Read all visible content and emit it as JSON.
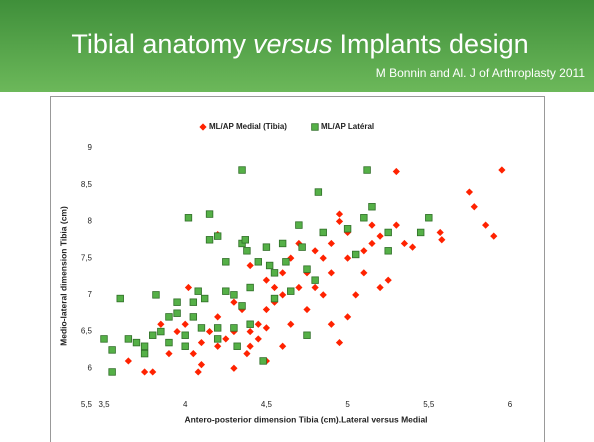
{
  "header": {
    "title": [
      "Tibial anatomy",
      "versus",
      "Implants design"
    ],
    "subtitle": "M Bonnin and Al. J of Arthroplasty 2011"
  },
  "chart_data": {
    "type": "scatter",
    "xlabel": "Antero-posterior dimension Tibia (cm).Lateral versus Medial",
    "ylabel": "Medio-lateral dimension Tibia (cm)",
    "xlim": [
      3.5,
      6
    ],
    "ylim": [
      5.5,
      9
    ],
    "xticks": [
      {
        "value": 3.5,
        "label": "3,5"
      },
      4,
      {
        "value": 4.5,
        "label": "4,5"
      },
      5,
      {
        "value": 5.5,
        "label": "5,5"
      },
      6
    ],
    "yticks": [
      {
        "value": 5.5,
        "label": "5,5"
      },
      6,
      {
        "value": 6.5,
        "label": "6,5"
      },
      7,
      {
        "value": 7.5,
        "label": "7,5"
      },
      8,
      {
        "value": 8.5,
        "label": "8,5"
      },
      9
    ],
    "grid": false,
    "legend": "top",
    "series": [
      {
        "name": "ML/AP Medial (Tibia)",
        "color": "#ff2200",
        "marker": "diamond",
        "x": [
          5.95,
          5.75,
          5.78,
          5.85,
          5.9,
          5.57,
          5.58,
          5.3,
          5.3,
          5.35,
          5.4,
          5.2,
          5.15,
          5.15,
          5.1,
          5.0,
          5.0,
          4.95,
          4.95,
          4.9,
          4.85,
          4.8,
          4.75,
          4.8,
          4.9,
          4.85,
          4.7,
          4.6,
          4.65,
          4.7,
          4.6,
          4.5,
          4.55,
          4.5,
          4.45,
          4.4,
          4.4,
          4.35,
          4.3,
          4.3,
          4.25,
          4.2,
          4.2,
          4.15,
          4.1,
          4.05,
          4.0,
          4.0,
          3.95,
          3.9,
          3.85,
          3.8,
          3.75,
          4.08,
          4.02,
          4.2,
          4.5,
          4.45,
          4.6,
          4.65,
          4.75,
          4.9,
          5.0,
          4.95,
          5.05,
          5.2,
          5.1,
          5.25,
          4.55,
          4.4,
          4.3,
          3.65,
          4.5,
          4.38,
          4.1
        ],
        "values": [
          8.7,
          8.4,
          8.2,
          7.95,
          7.8,
          7.85,
          7.75,
          8.68,
          7.95,
          7.7,
          7.65,
          7.8,
          7.7,
          7.95,
          7.6,
          7.85,
          7.5,
          8.1,
          8.0,
          7.7,
          7.5,
          7.6,
          7.3,
          7.1,
          7.3,
          7.0,
          7.1,
          7.3,
          7.5,
          7.7,
          7.0,
          7.2,
          6.9,
          6.8,
          6.6,
          6.5,
          6.3,
          6.8,
          6.9,
          6.5,
          6.4,
          6.7,
          6.3,
          6.5,
          6.35,
          6.2,
          6.3,
          6.6,
          6.5,
          6.2,
          6.6,
          5.95,
          5.95,
          5.95,
          7.1,
          7.82,
          6.1,
          6.4,
          6.3,
          6.6,
          6.8,
          6.6,
          6.7,
          6.35,
          7.0,
          7.1,
          7.3,
          7.2,
          7.1,
          7.4,
          6.0,
          6.1,
          6.55,
          6.2,
          6.05
        ]
      },
      {
        "name": "ML/AP Latéral",
        "color": "#55b047",
        "marker": "square",
        "x": [
          3.5,
          3.55,
          3.55,
          3.6,
          3.65,
          3.7,
          3.75,
          3.75,
          3.8,
          3.82,
          3.85,
          3.9,
          3.9,
          3.95,
          3.95,
          4.0,
          4.02,
          4.05,
          4.05,
          4.08,
          4.1,
          4.12,
          4.15,
          4.15,
          4.2,
          4.2,
          4.25,
          4.25,
          4.3,
          4.3,
          4.32,
          4.35,
          4.35,
          4.37,
          4.38,
          4.4,
          4.4,
          4.45,
          4.48,
          4.5,
          4.52,
          4.55,
          4.55,
          4.6,
          4.62,
          4.65,
          4.7,
          4.72,
          4.75,
          4.75,
          4.8,
          4.82,
          4.85,
          5.0,
          5.05,
          5.1,
          5.12,
          5.15,
          5.25,
          5.45,
          5.5,
          5.25,
          4.0,
          4.2,
          4.35
        ],
        "values": [
          6.4,
          6.25,
          5.95,
          6.95,
          6.4,
          6.35,
          6.2,
          6.3,
          6.45,
          7.0,
          6.5,
          6.7,
          6.35,
          6.9,
          6.75,
          6.45,
          8.05,
          6.9,
          6.7,
          7.05,
          6.55,
          6.95,
          7.75,
          8.1,
          7.8,
          6.4,
          7.05,
          7.45,
          7.0,
          6.55,
          6.3,
          7.7,
          8.7,
          7.75,
          7.6,
          7.1,
          6.6,
          7.45,
          6.1,
          7.65,
          7.4,
          7.3,
          6.95,
          7.7,
          7.45,
          7.05,
          7.95,
          7.65,
          7.35,
          6.45,
          7.2,
          8.4,
          7.85,
          7.9,
          7.55,
          8.05,
          8.7,
          8.2,
          7.85,
          7.85,
          8.05,
          7.6,
          6.3,
          6.55,
          6.85
        ]
      }
    ]
  }
}
